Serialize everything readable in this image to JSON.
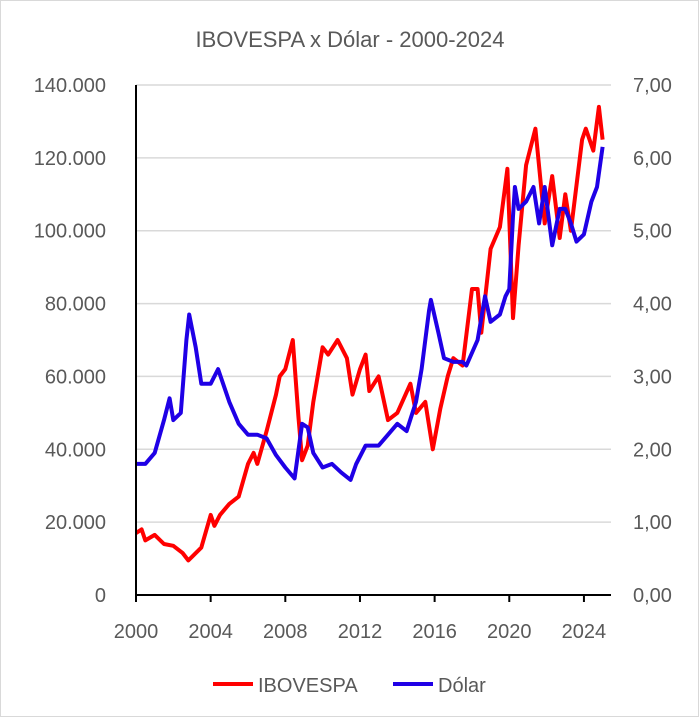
{
  "chart_data": {
    "type": "line",
    "title": "IBOVESPA x Dólar - 2000-2024",
    "xlim": [
      2000,
      2025.45
    ],
    "x_ticks": [
      "2000",
      "2004",
      "2008",
      "2012",
      "2016",
      "2020",
      "2024"
    ],
    "y_left": {
      "lim": [
        0,
        140000
      ],
      "ticks": [
        "0",
        "20.000",
        "40.000",
        "60.000",
        "80.000",
        "100.000",
        "120.000",
        "140.000"
      ]
    },
    "y_right": {
      "lim": [
        0,
        7
      ],
      "ticks": [
        "0,00",
        "1,00",
        "2,00",
        "3,00",
        "4,00",
        "5,00",
        "6,00",
        "7,00"
      ]
    },
    "grid": true,
    "legend": "bottom",
    "series": [
      {
        "name": "IBOVESPA",
        "axis": "left",
        "color": "#ff0000",
        "points": [
          [
            2000,
            17000
          ],
          [
            2000.3,
            18000
          ],
          [
            2000.5,
            15000
          ],
          [
            2001,
            16500
          ],
          [
            2001.5,
            14000
          ],
          [
            2002,
            13500
          ],
          [
            2002.5,
            11500
          ],
          [
            2002.8,
            9500
          ],
          [
            2003,
            10500
          ],
          [
            2003.5,
            13000
          ],
          [
            2004,
            22000
          ],
          [
            2004.2,
            19000
          ],
          [
            2004.5,
            22000
          ],
          [
            2005,
            25000
          ],
          [
            2005.5,
            27000
          ],
          [
            2006,
            36000
          ],
          [
            2006.3,
            39000
          ],
          [
            2006.5,
            36000
          ],
          [
            2007,
            45000
          ],
          [
            2007.5,
            55000
          ],
          [
            2007.7,
            60000
          ],
          [
            2008,
            62000
          ],
          [
            2008.4,
            70000
          ],
          [
            2008.7,
            49000
          ],
          [
            2008.9,
            37000
          ],
          [
            2009.2,
            41000
          ],
          [
            2009.5,
            53000
          ],
          [
            2010,
            68000
          ],
          [
            2010.3,
            66000
          ],
          [
            2010.8,
            70000
          ],
          [
            2011.3,
            65000
          ],
          [
            2011.6,
            55000
          ],
          [
            2012,
            62000
          ],
          [
            2012.3,
            66000
          ],
          [
            2012.5,
            56000
          ],
          [
            2013,
            60000
          ],
          [
            2013.5,
            48000
          ],
          [
            2014,
            50000
          ],
          [
            2014.7,
            58000
          ],
          [
            2015,
            50000
          ],
          [
            2015.5,
            53000
          ],
          [
            2015.9,
            40000
          ],
          [
            2016.3,
            51000
          ],
          [
            2016.7,
            60000
          ],
          [
            2017,
            65000
          ],
          [
            2017.5,
            63000
          ],
          [
            2018,
            84000
          ],
          [
            2018.3,
            84000
          ],
          [
            2018.5,
            72000
          ],
          [
            2019,
            95000
          ],
          [
            2019.5,
            101000
          ],
          [
            2019.9,
            117000
          ],
          [
            2020.2,
            76000
          ],
          [
            2020.5,
            96000
          ],
          [
            2020.9,
            118000
          ],
          [
            2021.4,
            128000
          ],
          [
            2021.9,
            102000
          ],
          [
            2022.3,
            115000
          ],
          [
            2022.7,
            98000
          ],
          [
            2023,
            110000
          ],
          [
            2023.3,
            100000
          ],
          [
            2023.9,
            125000
          ],
          [
            2024.1,
            128000
          ],
          [
            2024.5,
            122000
          ],
          [
            2024.8,
            134000
          ],
          [
            2025,
            125000
          ]
        ]
      },
      {
        "name": "Dólar",
        "axis": "right",
        "color": "#1f00e6",
        "points": [
          [
            2000,
            1.8
          ],
          [
            2000.5,
            1.8
          ],
          [
            2001,
            1.95
          ],
          [
            2001.5,
            2.4
          ],
          [
            2001.8,
            2.7
          ],
          [
            2002,
            2.4
          ],
          [
            2002.4,
            2.5
          ],
          [
            2002.7,
            3.5
          ],
          [
            2002.85,
            3.85
          ],
          [
            2003.2,
            3.4
          ],
          [
            2003.5,
            2.9
          ],
          [
            2004,
            2.9
          ],
          [
            2004.4,
            3.1
          ],
          [
            2005,
            2.65
          ],
          [
            2005.5,
            2.35
          ],
          [
            2006,
            2.2
          ],
          [
            2006.5,
            2.2
          ],
          [
            2007,
            2.15
          ],
          [
            2007.5,
            1.92
          ],
          [
            2008,
            1.75
          ],
          [
            2008.5,
            1.6
          ],
          [
            2008.9,
            2.35
          ],
          [
            2009.2,
            2.3
          ],
          [
            2009.5,
            1.95
          ],
          [
            2010,
            1.75
          ],
          [
            2010.5,
            1.8
          ],
          [
            2011,
            1.68
          ],
          [
            2011.5,
            1.58
          ],
          [
            2011.8,
            1.8
          ],
          [
            2012.3,
            2.05
          ],
          [
            2013,
            2.05
          ],
          [
            2013.5,
            2.2
          ],
          [
            2014,
            2.35
          ],
          [
            2014.5,
            2.25
          ],
          [
            2015,
            2.65
          ],
          [
            2015.3,
            3.1
          ],
          [
            2015.7,
            3.9
          ],
          [
            2015.8,
            4.05
          ],
          [
            2016.2,
            3.6
          ],
          [
            2016.5,
            3.25
          ],
          [
            2017,
            3.2
          ],
          [
            2017.5,
            3.2
          ],
          [
            2017.7,
            3.15
          ],
          [
            2018.3,
            3.5
          ],
          [
            2018.7,
            4.1
          ],
          [
            2019,
            3.75
          ],
          [
            2019.5,
            3.85
          ],
          [
            2019.8,
            4.1
          ],
          [
            2020,
            4.2
          ],
          [
            2020.2,
            5.2
          ],
          [
            2020.3,
            5.6
          ],
          [
            2020.5,
            5.3
          ],
          [
            2020.9,
            5.4
          ],
          [
            2021.3,
            5.6
          ],
          [
            2021.6,
            5.1
          ],
          [
            2021.9,
            5.6
          ],
          [
            2022.3,
            4.8
          ],
          [
            2022.7,
            5.3
          ],
          [
            2023,
            5.3
          ],
          [
            2023.3,
            5.1
          ],
          [
            2023.6,
            4.85
          ],
          [
            2024,
            4.95
          ],
          [
            2024.4,
            5.4
          ],
          [
            2024.7,
            5.6
          ],
          [
            2025,
            6.15
          ]
        ]
      }
    ]
  }
}
